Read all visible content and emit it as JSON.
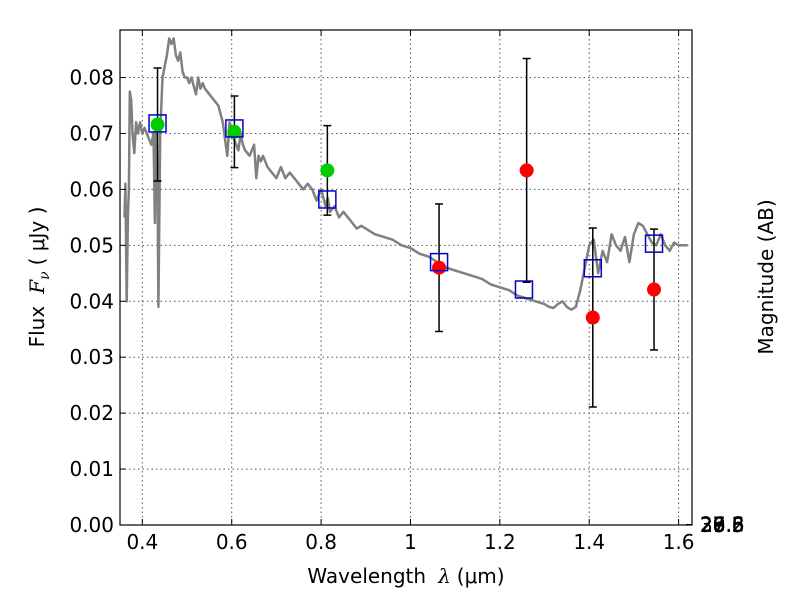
{
  "chart_data": {
    "type": "scatter",
    "title": "",
    "xlabel": "Wavelength",
    "xlabel_symbol": "λ",
    "xlabel_unit": "(μm)",
    "ylabel": "Flux",
    "ylabel_symbol": "F",
    "ylabel_symbol_sub": "ν",
    "ylabel_unit": "( μJy )",
    "y2label": "Magnitude (AB)",
    "xlim": [
      0.35,
      1.63
    ],
    "ylim": [
      0.0,
      0.0885
    ],
    "grid": true,
    "x_ticks": [
      {
        "value": 0.4,
        "label": "0.4"
      },
      {
        "value": 0.6,
        "label": "0.6"
      },
      {
        "value": 0.8,
        "label": "0.8"
      },
      {
        "value": 1.0,
        "label": "1"
      },
      {
        "value": 1.2,
        "label": "1.2"
      },
      {
        "value": 1.4,
        "label": "1.4"
      },
      {
        "value": 1.6,
        "label": "1.6"
      }
    ],
    "y_ticks": [
      {
        "value": 0.0,
        "label": "0.00"
      },
      {
        "value": 0.01,
        "label": "0.01"
      },
      {
        "value": 0.02,
        "label": "0.02"
      },
      {
        "value": 0.03,
        "label": "0.03"
      },
      {
        "value": 0.04,
        "label": "0.04"
      },
      {
        "value": 0.05,
        "label": "0.05"
      },
      {
        "value": 0.06,
        "label": "0.06"
      },
      {
        "value": 0.07,
        "label": "0.07"
      },
      {
        "value": 0.08,
        "label": "0.08"
      }
    ],
    "y2_ticks": [
      {
        "value": 26.6,
        "label": "26.6"
      },
      {
        "value": 26.8,
        "label": "26.8"
      },
      {
        "value": 27.0,
        "label": "27"
      },
      {
        "value": 27.2,
        "label": "27.2"
      },
      {
        "value": 27.5,
        "label": "27.5"
      },
      {
        "value": 28.0,
        "label": "28"
      },
      {
        "value": 28.5,
        "label": "28.5"
      },
      {
        "value": 29.0,
        "label": "29"
      },
      {
        "value": 30.0,
        "label": "30"
      }
    ],
    "colors": {
      "model": "#808080",
      "detected": "#00cc00",
      "undetected": "#ff0000",
      "model_band": "#0000cc",
      "errorbar": "#000000",
      "grid": "#555555"
    },
    "model_sed": {
      "x": [
        0.36,
        0.362,
        0.365,
        0.368,
        0.37,
        0.372,
        0.375,
        0.378,
        0.382,
        0.386,
        0.39,
        0.395,
        0.4,
        0.405,
        0.41,
        0.415,
        0.42,
        0.425,
        0.428,
        0.43,
        0.433,
        0.436,
        0.44,
        0.445,
        0.45,
        0.455,
        0.46,
        0.465,
        0.47,
        0.475,
        0.48,
        0.485,
        0.49,
        0.495,
        0.5,
        0.505,
        0.51,
        0.515,
        0.52,
        0.525,
        0.53,
        0.535,
        0.54,
        0.55,
        0.56,
        0.57,
        0.58,
        0.585,
        0.59,
        0.595,
        0.6,
        0.605,
        0.61,
        0.615,
        0.62,
        0.625,
        0.63,
        0.64,
        0.65,
        0.655,
        0.66,
        0.665,
        0.67,
        0.68,
        0.69,
        0.7,
        0.71,
        0.72,
        0.73,
        0.74,
        0.75,
        0.76,
        0.77,
        0.78,
        0.79,
        0.8,
        0.81,
        0.815,
        0.82,
        0.83,
        0.84,
        0.85,
        0.86,
        0.87,
        0.88,
        0.89,
        0.9,
        0.92,
        0.94,
        0.96,
        0.98,
        1.0,
        1.02,
        1.04,
        1.06,
        1.08,
        1.1,
        1.12,
        1.14,
        1.16,
        1.18,
        1.2,
        1.22,
        1.24,
        1.26,
        1.28,
        1.3,
        1.31,
        1.32,
        1.33,
        1.34,
        1.35,
        1.36,
        1.37,
        1.38,
        1.39,
        1.4,
        1.41,
        1.42,
        1.43,
        1.44,
        1.45,
        1.46,
        1.47,
        1.48,
        1.49,
        1.5,
        1.51,
        1.52,
        1.53,
        1.54,
        1.55,
        1.56,
        1.57,
        1.58,
        1.59,
        1.6,
        1.62
      ],
      "y": [
        0.055,
        0.061,
        0.04,
        0.056,
        0.06,
        0.0775,
        0.076,
        0.07,
        0.0665,
        0.072,
        0.07,
        0.072,
        0.07,
        0.071,
        0.07,
        0.069,
        0.068,
        0.07,
        0.054,
        0.07,
        0.0715,
        0.039,
        0.07,
        0.08,
        0.082,
        0.084,
        0.087,
        0.086,
        0.087,
        0.084,
        0.083,
        0.0845,
        0.081,
        0.08,
        0.08,
        0.079,
        0.08,
        0.0785,
        0.077,
        0.08,
        0.078,
        0.079,
        0.078,
        0.077,
        0.076,
        0.075,
        0.072,
        0.069,
        0.066,
        0.072,
        0.071,
        0.069,
        0.068,
        0.067,
        0.07,
        0.068,
        0.067,
        0.066,
        0.068,
        0.062,
        0.066,
        0.065,
        0.066,
        0.064,
        0.063,
        0.062,
        0.064,
        0.062,
        0.063,
        0.062,
        0.061,
        0.06,
        0.061,
        0.06,
        0.058,
        0.06,
        0.057,
        0.0585,
        0.056,
        0.057,
        0.055,
        0.056,
        0.055,
        0.054,
        0.053,
        0.0535,
        0.053,
        0.052,
        0.0515,
        0.051,
        0.05,
        0.0495,
        0.0485,
        0.048,
        0.047,
        0.046,
        0.0455,
        0.045,
        0.0445,
        0.044,
        0.043,
        0.0425,
        0.042,
        0.041,
        0.0405,
        0.04,
        0.0395,
        0.039,
        0.0388,
        0.0395,
        0.04,
        0.039,
        0.0385,
        0.039,
        0.042,
        0.046,
        0.05,
        0.051,
        0.045,
        0.049,
        0.047,
        0.052,
        0.05,
        0.049,
        0.0515,
        0.047,
        0.052,
        0.054,
        0.0535,
        0.052,
        0.0505,
        0.05,
        0.052,
        0.05,
        0.049,
        0.0505,
        0.05,
        0.05
      ]
    },
    "series": [
      {
        "marker": "circle",
        "color": "#00cc00",
        "points": [
          {
            "x": 0.434,
            "y": 0.0716,
            "err": 0.0101
          },
          {
            "x": 0.606,
            "y": 0.0703,
            "err": 0.0064
          },
          {
            "x": 0.814,
            "y": 0.0634,
            "err": 0.008
          }
        ]
      },
      {
        "marker": "circle",
        "color": "#ff0000",
        "points": [
          {
            "x": 1.064,
            "y": 0.046,
            "err": 0.0114
          },
          {
            "x": 1.26,
            "y": 0.0634,
            "err": 0.02
          },
          {
            "x": 1.408,
            "y": 0.0371,
            "err": 0.016
          },
          {
            "x": 1.545,
            "y": 0.0421,
            "err": 0.0108
          }
        ]
      },
      {
        "marker": "open-square",
        "color": "#0000cc",
        "points": [
          {
            "x": 0.434,
            "y": 0.0718
          },
          {
            "x": 0.606,
            "y": 0.0709
          },
          {
            "x": 0.814,
            "y": 0.0582
          },
          {
            "x": 1.064,
            "y": 0.047
          },
          {
            "x": 1.254,
            "y": 0.0421
          },
          {
            "x": 1.408,
            "y": 0.0459
          },
          {
            "x": 1.545,
            "y": 0.0503
          }
        ]
      }
    ]
  }
}
